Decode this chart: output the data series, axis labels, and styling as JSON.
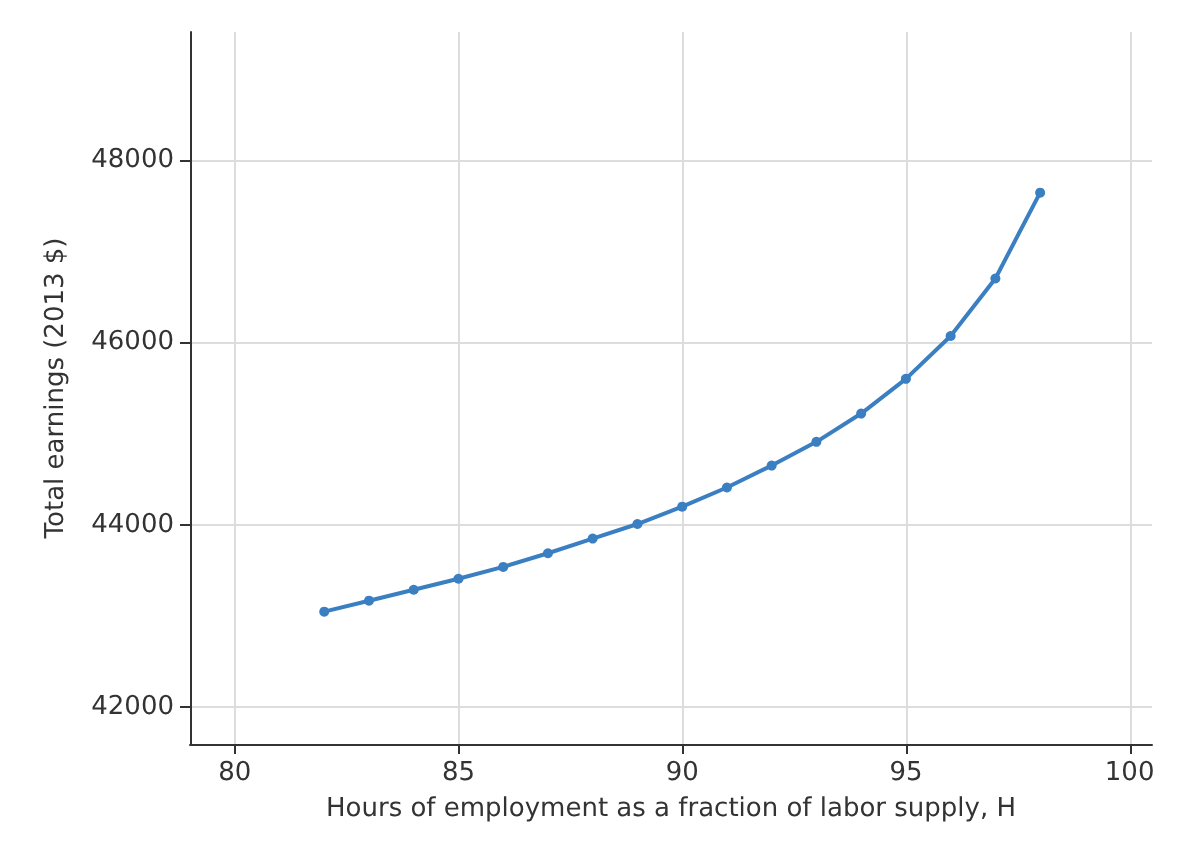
{
  "chart_data": {
    "type": "line",
    "xlabel": "Hours of employment as a fraction of labor supply, H",
    "ylabel": "Total earnings (2013 $)",
    "x": [
      82,
      83,
      84,
      85,
      86,
      87,
      88,
      89,
      90,
      91,
      92,
      93,
      94,
      95,
      96,
      97,
      98
    ],
    "series": [
      {
        "color": "#3a7fc1",
        "values": [
          43050,
          43170,
          43290,
          43410,
          43540,
          43690,
          43850,
          44010,
          44200,
          44410,
          44650,
          44910,
          45220,
          45600,
          46070,
          46700,
          47640
        ]
      }
    ],
    "xlim": [
      79,
      100.5
    ],
    "xticks": [
      80,
      85,
      90,
      95,
      100
    ],
    "ylim": [
      41600,
      49400
    ],
    "yticks": [
      42000,
      44000,
      46000,
      48000
    ],
    "grid": true,
    "marker": "circle",
    "line_style": "solid"
  }
}
